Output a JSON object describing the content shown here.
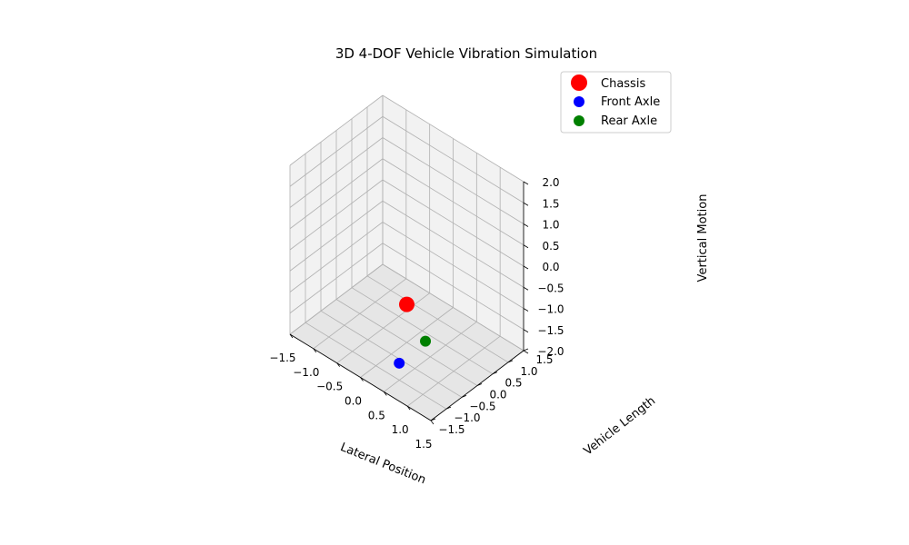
{
  "chart_data": {
    "type": "scatter",
    "title": "3D 4-DOF Vehicle Vibration Simulation",
    "xlabel": "Lateral Position",
    "ylabel": "Vehicle Length",
    "zlabel": "Vertical Motion",
    "xlim": [
      -1.5,
      1.5
    ],
    "ylim": [
      -1.5,
      1.5
    ],
    "zlim": [
      -2.0,
      2.0
    ],
    "grid": true,
    "legend_position": "top-right",
    "x_ticks": [
      "−1.5",
      "−1.0",
      "−0.5",
      "0.0",
      "0.5",
      "1.0",
      "1.5"
    ],
    "y_ticks": [
      "−1.5",
      "−1.0",
      "−0.5",
      "0.0",
      "0.5",
      "1.0",
      "1.5"
    ],
    "z_ticks": [
      "−2.0",
      "−1.5",
      "−1.0",
      "−0.5",
      "0.0",
      "0.5",
      "1.0",
      "1.5",
      "2.0"
    ],
    "series": [
      {
        "name": "Chassis",
        "color": "#ff0000",
        "size": "large",
        "points": [
          {
            "x": 0.0,
            "y": 0.0,
            "z": -1.1
          }
        ]
      },
      {
        "name": "Front Axle",
        "color": "#0000ff",
        "size": "medium",
        "points": [
          {
            "x": 0.3,
            "y": -0.7,
            "z": -1.9
          }
        ]
      },
      {
        "name": "Rear Axle",
        "color": "#008000",
        "size": "medium",
        "points": [
          {
            "x": 0.2,
            "y": 0.3,
            "z": -2.0
          }
        ]
      }
    ]
  }
}
